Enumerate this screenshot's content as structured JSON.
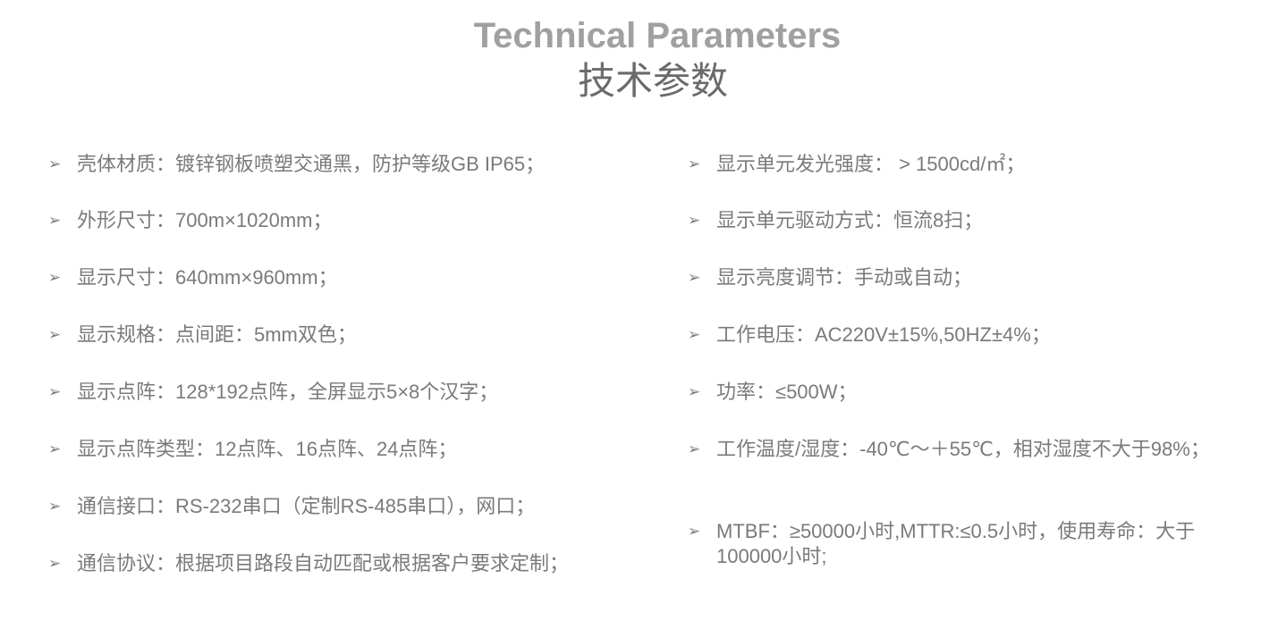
{
  "header": {
    "title_en": "Technical Parameters",
    "title_cn": "技术参数"
  },
  "bullet_icon": "arrowhead-bullet-icon",
  "left_items": [
    "壳体材质：镀锌钢板喷塑交通黑，防护等级GB IP65；",
    "外形尺寸：700m×1020mm；",
    "显示尺寸：640mm×960mm；",
    "显示规格：点间距：5mm双色；",
    "显示点阵：128*192点阵，全屏显示5×8个汉字；",
    "显示点阵类型：12点阵、16点阵、24点阵；",
    "通信接口：RS-232串口（定制RS-485串口），网口；",
    "通信协议：根据项目路段自动匹配或根据客户要求定制；"
  ],
  "right_items": [
    "显示单元发光强度： > 1500cd/㎡；",
    "显示单元驱动方式：恒流8扫；",
    "显示亮度调节：手动或自动；",
    "工作电压：AC220V±15%,50HZ±4%；",
    "功率：≤500W；",
    "工作温度/湿度：-40℃～＋55℃，相对湿度不大于98%；",
    "MTBF：≥50000小时,MTTR:≤0.5小时，使用寿命：大于100000小时;"
  ]
}
